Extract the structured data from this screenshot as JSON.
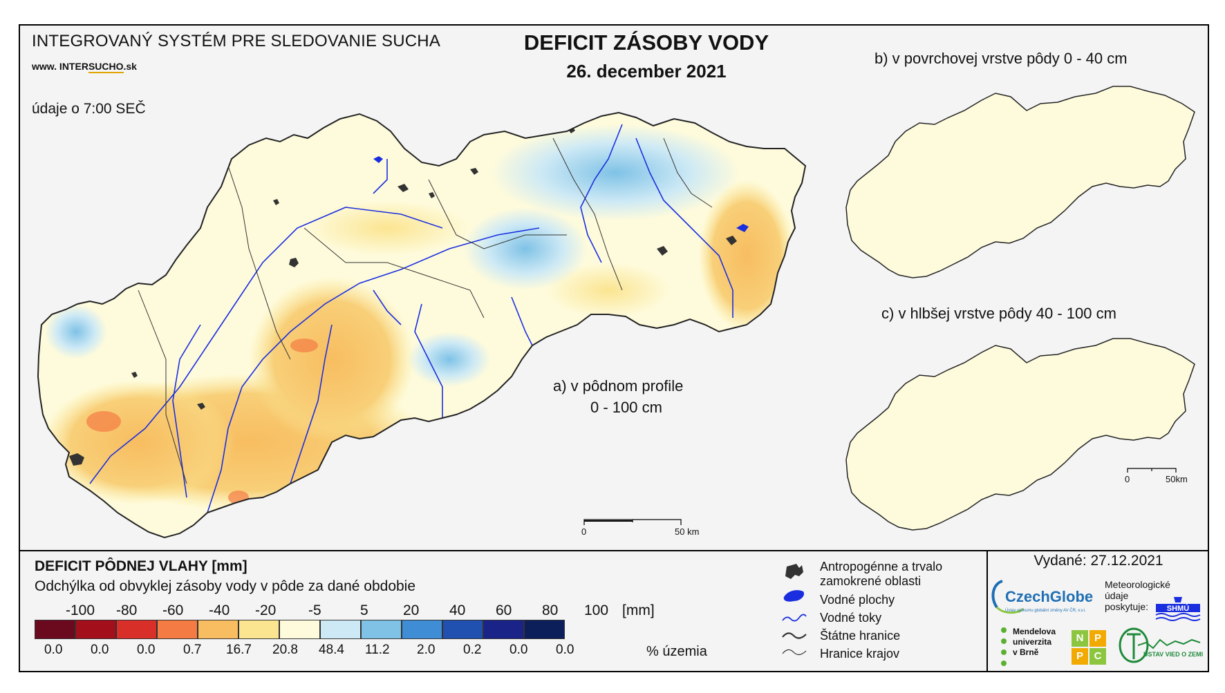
{
  "header": {
    "system_title": "INTEGROVANÝ SYSTÉM PRE SLEDOVANIE SUCHA",
    "website_pre": "www. INTER",
    "website_hl": "SUCHO",
    "website_post": ".sk",
    "observation_time": "údaje o 7:00 SEČ"
  },
  "title": {
    "main": "DEFICIT ZÁSOBY VODY",
    "date": "26. december 2021"
  },
  "panels": {
    "a_line1": "a) v pôdnom profile",
    "a_line2": "0 - 100 cm",
    "b": "b) v povrchovej vrstve pôdy 0 - 40 cm",
    "c": "c) v hlbšej vrstve pôdy 40 - 100 cm"
  },
  "scalebars": {
    "main_start": "0",
    "main_end": "50 km",
    "small_start": "0",
    "small_end": "50km"
  },
  "legend": {
    "title": "DEFICIT PÔDNEJ VLAHY [mm]",
    "subtitle": "Odchýlka od obvyklej zásoby vody v pôde za dané obdobie",
    "unit": "[mm]",
    "pct_label": "% územia",
    "class_labels": [
      "-100",
      "-80",
      "-60",
      "-40",
      "-20",
      "-5",
      "5",
      "20",
      "40",
      "60",
      "80",
      "100"
    ],
    "colors": [
      "#6b0a1e",
      "#a3101c",
      "#d83028",
      "#f47c44",
      "#f8bd60",
      "#fbe591",
      "#fefbdc",
      "#cde9f5",
      "#7fc2e6",
      "#3f8dd4",
      "#2050b0",
      "#1a2388",
      "#0c1f5a"
    ],
    "percentages": [
      "0.0",
      "0.0",
      "0.0",
      "0.7",
      "16.7",
      "20.8",
      "48.4",
      "11.2",
      "2.0",
      "0.2",
      "0.0",
      "0.0"
    ]
  },
  "symbols": {
    "anthropogenic_1": "Antropogénne a trvalo",
    "anthropogenic_2": "zamokrené oblasti",
    "water_bodies": "Vodné plochy",
    "rivers": "Vodné toky",
    "state_border": "Štátne hranice",
    "region_border": "Hranice krajov"
  },
  "footer": {
    "issued": "Vydané: 27.12.2021",
    "czechglobe": "CzechGlobe",
    "czechglobe_sub": "Ústav výzkumu globální změny AV ČR, v.v.i.",
    "meteo_1": "Meteorologické",
    "meteo_2": "údaje",
    "meteo_3": "poskytuje:",
    "shmu": "SHMÚ",
    "mendel_1": "Mendelova",
    "mendel_2": "univerzita",
    "mendel_3": "v Brně",
    "npc": [
      "N",
      "P",
      "P",
      "C"
    ],
    "uvz": "ÚSTAV VIED O ZEMI"
  }
}
